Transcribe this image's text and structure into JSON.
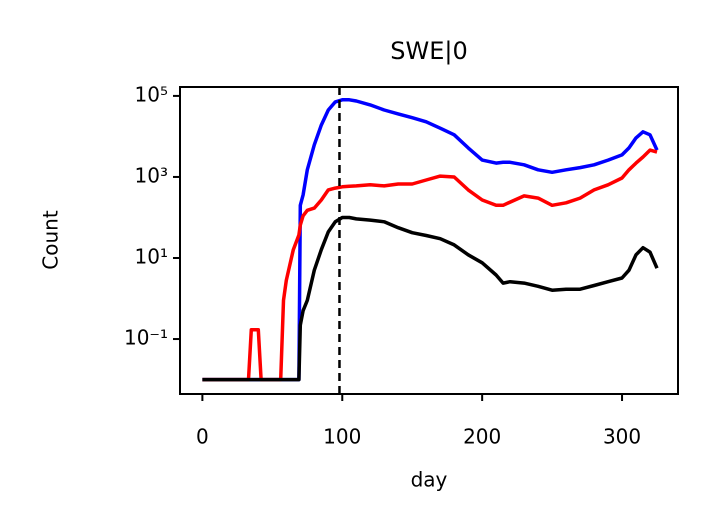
{
  "chart_data": {
    "type": "line",
    "title": "SWE|0",
    "xlabel": "day",
    "ylabel": "Count",
    "log_y": true,
    "grid": false,
    "x": [
      0,
      10,
      20,
      30,
      33,
      35,
      40,
      42,
      50,
      56,
      58,
      60,
      65,
      69,
      70,
      72,
      75,
      80,
      85,
      90,
      95,
      100,
      105,
      110,
      120,
      130,
      140,
      150,
      160,
      170,
      180,
      190,
      200,
      210,
      215,
      220,
      230,
      240,
      250,
      260,
      270,
      280,
      290,
      300,
      305,
      310,
      315,
      320,
      325
    ],
    "series": [
      {
        "name": "blue",
        "color": "#0000ff",
        "values": [
          0.01,
          0.01,
          0.01,
          0.01,
          0.01,
          0.01,
          0.01,
          0.01,
          0.01,
          0.01,
          0.01,
          0.01,
          0.01,
          0.01,
          200,
          360,
          1500,
          6200,
          19000,
          45000,
          71000,
          80000,
          80000,
          75000,
          60000,
          45000,
          36000,
          29000,
          23000,
          16000,
          11000,
          5200,
          2600,
          2200,
          2300,
          2300,
          2000,
          1500,
          1300,
          1500,
          1700,
          2000,
          2600,
          3500,
          5200,
          9200,
          13000,
          11000,
          4600
        ]
      },
      {
        "name": "red",
        "color": "#ff0000",
        "values": [
          0.01,
          0.01,
          0.01,
          0.01,
          0.01,
          0.17,
          0.17,
          0.01,
          0.01,
          0.01,
          0.9,
          2.8,
          16,
          37,
          65,
          110,
          150,
          170,
          270,
          480,
          530,
          570,
          590,
          600,
          640,
          600,
          670,
          670,
          840,
          1050,
          1000,
          480,
          270,
          200,
          200,
          240,
          340,
          300,
          200,
          230,
          300,
          480,
          640,
          940,
          1500,
          2200,
          3100,
          4600,
          4100
        ]
      },
      {
        "name": "black",
        "color": "#000000",
        "values": [
          0.01,
          0.01,
          0.01,
          0.01,
          0.01,
          0.01,
          0.01,
          0.01,
          0.01,
          0.01,
          0.01,
          0.01,
          0.01,
          0.01,
          0.22,
          0.5,
          0.9,
          5,
          16,
          44,
          78,
          100,
          100,
          92,
          86,
          78,
          56,
          42,
          36,
          30,
          21,
          12,
          7.6,
          3.8,
          2.4,
          2.6,
          2.4,
          2.0,
          1.6,
          1.7,
          1.7,
          2.1,
          2.6,
          3.2,
          5,
          12,
          18,
          14,
          5.6
        ]
      }
    ],
    "vline": 98,
    "xlim": [
      -16,
      340
    ],
    "xticks": [
      0,
      100,
      200,
      300
    ],
    "ylim": [
      0.0044,
      166000
    ],
    "yticks": [
      {
        "value": 0.1,
        "label": "10⁻¹"
      },
      {
        "value": 10,
        "label": "10¹"
      },
      {
        "value": 1000,
        "label": "10³"
      },
      {
        "value": 100000,
        "label": "10⁵"
      }
    ]
  }
}
